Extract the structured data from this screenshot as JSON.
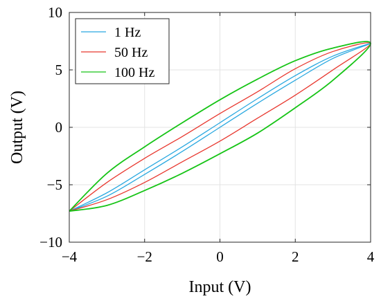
{
  "chart_data": {
    "type": "line",
    "title": "",
    "xlabel": "Input (V)",
    "ylabel": "Output (V)",
    "xlim": [
      -4,
      4
    ],
    "ylim": [
      -10,
      10
    ],
    "xticks": [
      -4,
      -2,
      0,
      2,
      4
    ],
    "yticks": [
      -10,
      -5,
      0,
      5,
      10
    ],
    "xtick_labels": [
      "−4",
      "−2",
      "0",
      "2",
      "4"
    ],
    "ytick_labels": [
      "−10",
      "−5",
      "0",
      "5",
      "10"
    ],
    "grid": true,
    "legend_position": "top-left",
    "series": [
      {
        "name": "1 Hz",
        "color": "#29a8e0",
        "x": [
          -4.0,
          -3.0,
          -2.0,
          -1.0,
          0.0,
          1.0,
          2.0,
          3.0,
          4.0,
          3.0,
          2.0,
          1.0,
          0.0,
          -1.0,
          -2.0,
          -3.0,
          -4.0
        ],
        "y": [
          -7.3,
          -6.0,
          -4.1,
          -2.1,
          0.0,
          2.1,
          4.1,
          6.0,
          7.3,
          6.2,
          4.5,
          2.5,
          0.4,
          -1.7,
          -3.7,
          -5.7,
          -7.3
        ]
      },
      {
        "name": "50 Hz",
        "color": "#e8382f",
        "x": [
          -4.0,
          -3.0,
          -2.0,
          -1.0,
          0.0,
          1.0,
          2.0,
          3.0,
          4.0,
          3.0,
          2.0,
          1.0,
          0.0,
          -1.0,
          -2.0,
          -3.0,
          -4.0
        ],
        "y": [
          -7.3,
          -6.3,
          -4.8,
          -3.0,
          -1.2,
          0.8,
          2.8,
          5.0,
          7.3,
          6.6,
          5.1,
          3.1,
          1.2,
          -0.8,
          -2.7,
          -4.8,
          -7.3
        ]
      },
      {
        "name": "100 Hz",
        "color": "#16c416",
        "x": [
          -4.0,
          -3.0,
          -2.0,
          -1.0,
          0.0,
          1.0,
          2.0,
          3.0,
          4.0,
          3.0,
          2.0,
          1.0,
          0.0,
          -1.0,
          -2.0,
          -3.0,
          -4.0
        ],
        "y": [
          -7.3,
          -6.8,
          -5.5,
          -4.0,
          -2.3,
          -0.5,
          1.7,
          4.1,
          7.3,
          6.9,
          5.8,
          4.2,
          2.4,
          0.4,
          -1.7,
          -4.0,
          -7.3
        ]
      }
    ]
  }
}
